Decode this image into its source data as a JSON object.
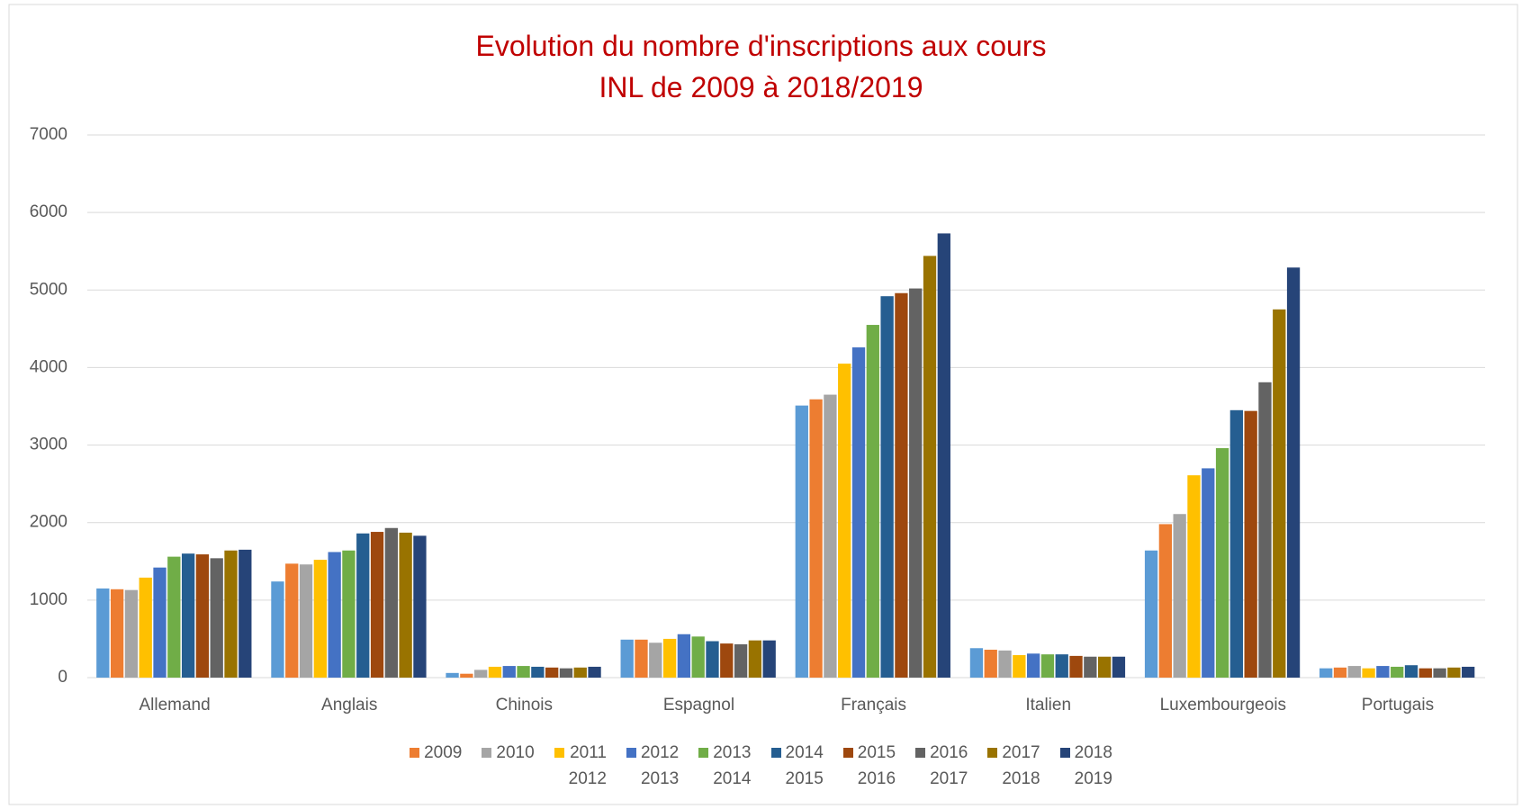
{
  "chart_data": {
    "type": "bar",
    "title": "Evolution du nombre d'inscriptions aux cours\nINL de 2009 à 2018/2019",
    "categories": [
      "Allemand",
      "Anglais",
      "Chinois",
      "Espagnol",
      "Français",
      "Italien",
      "Luxembourgeois",
      "Portugais"
    ],
    "series": [
      {
        "color": "#5b9bd5",
        "values": [
          1150,
          1240,
          60,
          490,
          3510,
          380,
          1640,
          120
        ]
      },
      {
        "name": "2009",
        "color": "#ed7d31",
        "values": [
          1140,
          1470,
          50,
          490,
          3590,
          360,
          1980,
          130
        ]
      },
      {
        "name": "2010",
        "color": "#a5a5a5",
        "values": [
          1130,
          1460,
          100,
          450,
          3650,
          350,
          2110,
          150
        ]
      },
      {
        "name": "2011\n2012",
        "color": "#ffc000",
        "values": [
          1290,
          1520,
          140,
          500,
          4050,
          290,
          2610,
          120
        ]
      },
      {
        "name": "2012\n2013",
        "color": "#4472c4",
        "values": [
          1420,
          1620,
          150,
          560,
          4260,
          310,
          2700,
          150
        ]
      },
      {
        "name": "2013\n2014",
        "color": "#70ad47",
        "values": [
          1560,
          1640,
          150,
          530,
          4550,
          300,
          2960,
          140
        ]
      },
      {
        "name": "2014\n2015",
        "color": "#255e91",
        "values": [
          1600,
          1860,
          140,
          470,
          4920,
          300,
          3450,
          160
        ]
      },
      {
        "name": "2015\n2016",
        "color": "#9e480e",
        "values": [
          1590,
          1880,
          130,
          440,
          4960,
          280,
          3440,
          120
        ]
      },
      {
        "name": "2016\n2017",
        "color": "#636363",
        "values": [
          1540,
          1930,
          120,
          430,
          5020,
          270,
          3810,
          120
        ]
      },
      {
        "name": "2017\n2018",
        "color": "#997300",
        "values": [
          1640,
          1870,
          130,
          480,
          5440,
          270,
          4750,
          130
        ]
      },
      {
        "name": "2018\n2019",
        "color": "#264478",
        "values": [
          1650,
          1830,
          140,
          480,
          5730,
          270,
          5290,
          140
        ]
      }
    ],
    "ylim": [
      0,
      7000
    ],
    "yticks": [
      0,
      1000,
      2000,
      3000,
      4000,
      5000,
      6000,
      7000
    ],
    "grid": true,
    "legend": "bottom"
  }
}
